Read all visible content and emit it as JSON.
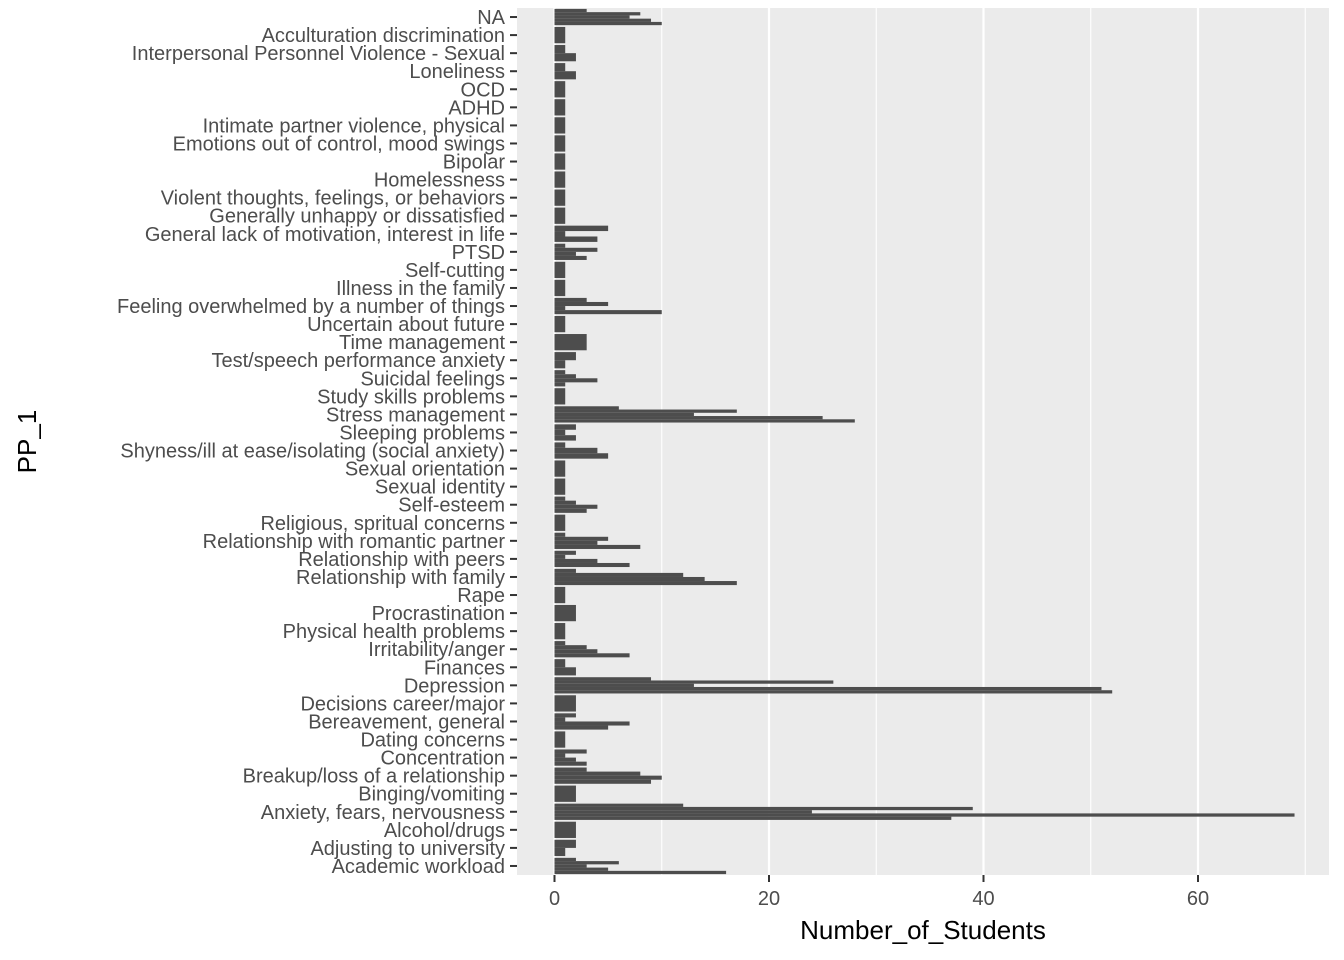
{
  "chart_data": {
    "type": "bar",
    "orientation": "horizontal",
    "stacking": "overlapping-segments",
    "xlabel": "Number_of_Students",
    "ylabel": "PP_1",
    "xlim": [
      -3.5,
      72.5
    ],
    "x_ticks": [
      0,
      20,
      40,
      60
    ],
    "grid": true,
    "colors": {
      "panel": "#ebebeb",
      "grid": "#ffffff",
      "bar": "#4d4d4d"
    },
    "categories": [
      {
        "label": "NA",
        "values": [
          3,
          8,
          7,
          9,
          10
        ]
      },
      {
        "label": "Acculturation discrimination",
        "values": [
          1
        ]
      },
      {
        "label": "Interpersonal Personnel Violence - Sexual",
        "values": [
          1,
          2
        ]
      },
      {
        "label": "Loneliness",
        "values": [
          1,
          2
        ]
      },
      {
        "label": "OCD",
        "values": [
          1
        ]
      },
      {
        "label": "ADHD",
        "values": [
          1
        ]
      },
      {
        "label": "Intimate partner violence, physical",
        "values": [
          1
        ]
      },
      {
        "label": "Emotions out of control, mood swings",
        "values": [
          1
        ]
      },
      {
        "label": "Bipolar",
        "values": [
          1
        ]
      },
      {
        "label": "Homelessness",
        "values": [
          1
        ]
      },
      {
        "label": "Violent thoughts, feelings, or behaviors",
        "values": [
          1
        ]
      },
      {
        "label": "Generally unhappy or dissatisfied",
        "values": [
          1
        ]
      },
      {
        "label": "General lack of motivation, interest in life",
        "values": [
          5,
          1,
          4
        ]
      },
      {
        "label": "PTSD",
        "values": [
          1,
          4,
          2,
          3
        ]
      },
      {
        "label": "Self-cutting",
        "values": [
          1
        ]
      },
      {
        "label": "Illness in the family",
        "values": [
          1
        ]
      },
      {
        "label": "Feeling overwhelmed by a number of things",
        "values": [
          3,
          5,
          1,
          10
        ]
      },
      {
        "label": "Uncertain about future",
        "values": [
          1
        ]
      },
      {
        "label": "Time management",
        "values": [
          3
        ]
      },
      {
        "label": "Test/speech performance anxiety",
        "values": [
          2,
          1
        ]
      },
      {
        "label": "Suicidal feelings",
        "values": [
          1,
          2,
          4,
          1
        ]
      },
      {
        "label": "Study skills problems",
        "values": [
          1
        ]
      },
      {
        "label": "Stress management",
        "values": [
          6,
          17,
          13,
          25,
          28
        ]
      },
      {
        "label": "Sleeping problems",
        "values": [
          2,
          1,
          2
        ]
      },
      {
        "label": "Shyness/ill at ease/isolating (social anxiety)",
        "values": [
          1,
          4,
          5
        ]
      },
      {
        "label": "Sexual orientation",
        "values": [
          1
        ]
      },
      {
        "label": "Sexual identity",
        "values": [
          1
        ]
      },
      {
        "label": "Self-esteem",
        "values": [
          1,
          2,
          4,
          3
        ]
      },
      {
        "label": "Religious, spritual concerns",
        "values": [
          1
        ]
      },
      {
        "label": "Relationship with romantic partner",
        "values": [
          1,
          5,
          4,
          8
        ]
      },
      {
        "label": "Relationship with peers",
        "values": [
          2,
          1,
          4,
          7
        ]
      },
      {
        "label": "Relationship with family",
        "values": [
          2,
          12,
          14,
          17
        ]
      },
      {
        "label": "Rape",
        "values": [
          1
        ]
      },
      {
        "label": "Procrastination",
        "values": [
          2
        ]
      },
      {
        "label": "Physical health problems",
        "values": [
          1
        ]
      },
      {
        "label": "Irritability/anger",
        "values": [
          1,
          3,
          4,
          7
        ]
      },
      {
        "label": "Finances",
        "values": [
          1,
          2
        ]
      },
      {
        "label": "Depression",
        "values": [
          9,
          26,
          13,
          51,
          52
        ]
      },
      {
        "label": "Decisions career/major",
        "values": [
          2
        ]
      },
      {
        "label": "Bereavement, general",
        "values": [
          2,
          1,
          7,
          5
        ]
      },
      {
        "label": "Dating concerns",
        "values": [
          1
        ]
      },
      {
        "label": "Concentration",
        "values": [
          3,
          1,
          2,
          3
        ]
      },
      {
        "label": "Breakup/loss of a relationship",
        "values": [
          3,
          8,
          10,
          9
        ]
      },
      {
        "label": "Binging/vomiting",
        "values": [
          2
        ]
      },
      {
        "label": "Anxiety, fears, nervousness",
        "values": [
          12,
          39,
          24,
          69,
          37
        ]
      },
      {
        "label": "Alcohol/drugs",
        "values": [
          2
        ]
      },
      {
        "label": "Adjusting to university",
        "values": [
          2,
          1
        ]
      },
      {
        "label": "Academic workload",
        "values": [
          2,
          6,
          3,
          5,
          16
        ]
      }
    ]
  }
}
